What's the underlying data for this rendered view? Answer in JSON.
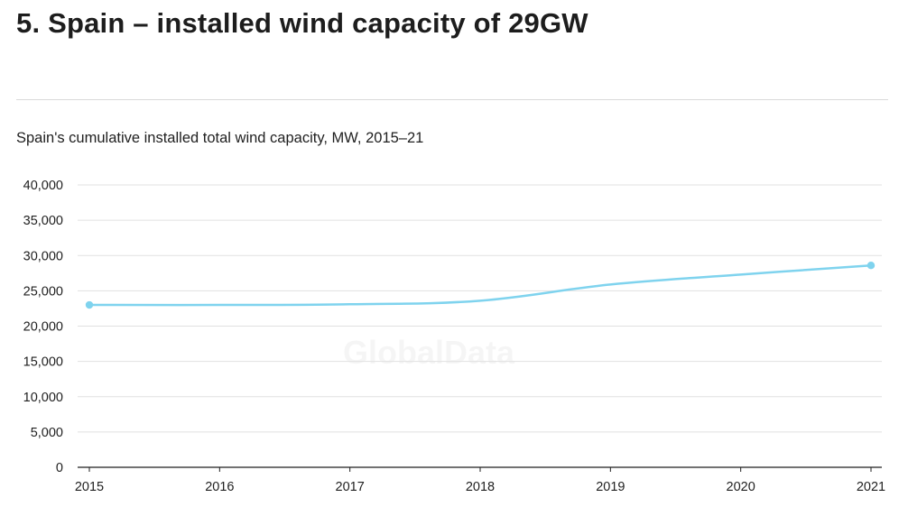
{
  "heading": "5. Spain – installed wind capacity of 29GW",
  "watermark": "GlobalData",
  "chart_data": {
    "type": "line",
    "title": "Spain's cumulative installed total wind capacity, MW, 2015–21",
    "xlabel": "",
    "ylabel": "",
    "x": [
      "2015",
      "2016",
      "2017",
      "2018",
      "2019",
      "2020",
      "2021"
    ],
    "series": [
      {
        "values": [
          23000,
          23000,
          23100,
          23600,
          25900,
          27300,
          28600
        ],
        "color": "#7fd3ee"
      }
    ],
    "ylim": [
      0,
      40000
    ],
    "yticks": [
      0,
      5000,
      10000,
      15000,
      20000,
      25000,
      30000,
      35000,
      40000
    ],
    "ytick_labels": [
      "0",
      "5,000",
      "10,000",
      "15,000",
      "20,000",
      "25,000",
      "30,000",
      "35,000",
      "40,000"
    ],
    "grid": true,
    "legend": "none",
    "markers": "endpoints"
  },
  "colors": {
    "line": "#7fd3ee",
    "grid": "#e1e1e1",
    "axis": "#1f1f1f"
  }
}
